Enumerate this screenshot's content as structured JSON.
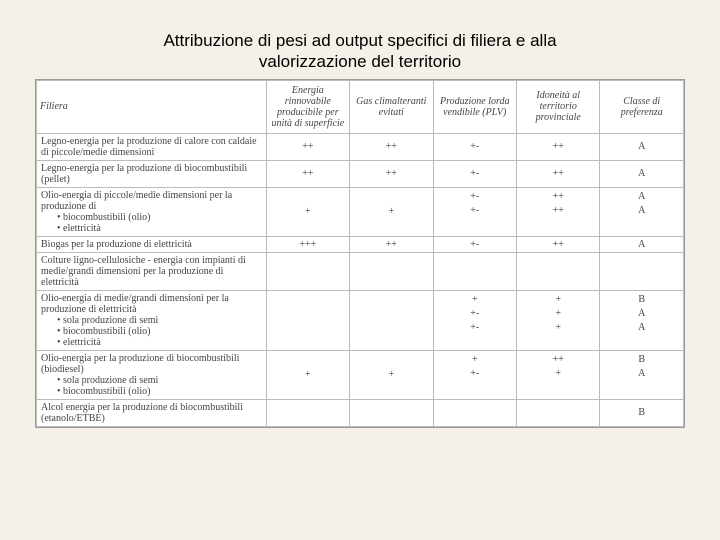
{
  "title_line1": "Attribuzione di pesi ad output specifici di filiera e alla",
  "title_line2": "valorizzazione del territorio",
  "headers": {
    "filiera": "Filiera",
    "energia": "Energia rinnovabile producibile per unità di superficie",
    "gas": "Gas climalteranti evitati",
    "plv": "Produzione lorda vendibile (PLV)",
    "idoneita": "Idoneità al territorio provinciale",
    "classe": "Classe di preferenza"
  },
  "rows": [
    {
      "filiera": "Legno-energia per la produzione di calore con caldaie di piccole/medie dimensioni",
      "energia": "++",
      "gas": "++",
      "plv": "+-",
      "idoneita": "++",
      "classe": "A"
    },
    {
      "filiera": "Legno-energia per la produzione di biocombustibili (pellet)",
      "energia": "++",
      "gas": "++",
      "plv": "+-",
      "idoneita": "++",
      "classe": "A"
    },
    {
      "filiera": "Olio-energia di piccole/medie dimensioni per la produzione di",
      "subs": [
        "biocombustibili (olio)",
        "elettricità"
      ],
      "energia": "+",
      "gas": "+",
      "plv_stack": [
        "+-",
        "+-"
      ],
      "idoneita_stack": [
        "++",
        "++"
      ],
      "classe_stack": [
        "A",
        "A"
      ]
    },
    {
      "filiera": "Biogas per la produzione di elettricità",
      "energia": "+++",
      "gas": "++",
      "plv": "+-",
      "idoneita": "++",
      "classe": "A"
    },
    {
      "filiera": "Colture ligno-cellulosiche - energia con impianti di medie/grandi dimensioni per la produzione di elettricità",
      "energia": "",
      "gas": "",
      "plv": "",
      "idoneita": "",
      "classe": ""
    },
    {
      "filiera": "Olio-energia di medie/grandi dimensioni per la produzione di elettricità",
      "subs": [
        "sola produzione di semi",
        "biocombustibili (olio)",
        "elettricità"
      ],
      "energia": "",
      "gas": "",
      "plv_stack": [
        "+",
        "+-",
        "+-"
      ],
      "idoneita_stack": [
        "+",
        "+",
        "+"
      ],
      "classe_stack": [
        "B",
        "A",
        "A"
      ]
    },
    {
      "filiera": "Olio-energia per la produzione di biocombustibili (biodiesel)",
      "subs": [
        "sola produzione di semi",
        "biocombustibili (olio)"
      ],
      "energia": "+",
      "gas": "+",
      "plv_stack": [
        "+",
        "+-"
      ],
      "idoneita_stack": [
        "++",
        "+"
      ],
      "classe_stack": [
        "B",
        "A"
      ]
    },
    {
      "filiera": "Alcol energia per la produzione di biocombustibili (etanolo/ETBE)",
      "energia": "",
      "gas": "",
      "plv": "",
      "idoneita": "",
      "classe": "B"
    }
  ]
}
